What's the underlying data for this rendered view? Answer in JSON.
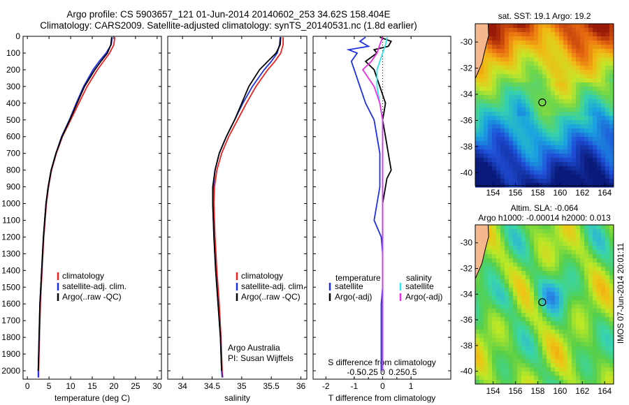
{
  "header": {
    "line1": "Argo profile: CS 5903657_121 01-Jun-2014 20140602_253 34.62S 158.404E",
    "line2": "Climatology: CARS2009. Satellite-adjusted climatology: synTS_20140531.nc (1.8d earlier)"
  },
  "colors": {
    "climatology": "#ee2020",
    "satellite": "#1f2fe6",
    "argo": "#000000",
    "argo_salinity": "#ee2ce6",
    "satellite_salinity": "#30e6ee",
    "land": "#f4b88c"
  },
  "chart_data": [
    {
      "id": "temperature",
      "type": "line",
      "xlabel": "temperature (deg C)",
      "xlim": [
        -1,
        31
      ],
      "ylim": [
        2050,
        0
      ],
      "xticks": [
        0,
        5,
        10,
        15,
        20,
        25,
        30
      ],
      "xtick_labels": [
        "0",
        "5",
        "10",
        "15",
        "20",
        "25",
        "30"
      ],
      "yticks": [
        0,
        100,
        200,
        300,
        400,
        500,
        600,
        700,
        800,
        900,
        1000,
        1100,
        1200,
        1300,
        1400,
        1500,
        1600,
        1700,
        1800,
        1900,
        2000
      ],
      "ytick_labels": [
        "0",
        "100",
        "200",
        "300",
        "400",
        "500",
        "600",
        "700",
        "800",
        "900",
        "1000",
        "1100",
        "1200",
        "1300",
        "1400",
        "1500",
        "1600",
        "1700",
        "1800",
        "1900",
        "2000"
      ],
      "legend": [
        "climatology",
        "satellite-adj. clim.",
        "Argo(..raw -QC)"
      ],
      "series": [
        {
          "name": "climatology",
          "color": "#ee2020",
          "depth": [
            5,
            50,
            100,
            150,
            200,
            300,
            400,
            500,
            600,
            700,
            800,
            900,
            1000,
            1200,
            1400,
            1600,
            1800,
            2000,
            2040
          ],
          "values": [
            20.2,
            20.0,
            19.0,
            17.6,
            16.2,
            13.8,
            11.9,
            10.0,
            8.1,
            6.7,
            5.6,
            4.9,
            4.4,
            3.8,
            3.4,
            3.0,
            2.8,
            2.6,
            2.6
          ]
        },
        {
          "name": "satellite-adj. clim.",
          "color": "#1f2fe6",
          "depth": [
            5,
            50,
            100,
            150,
            200,
            300,
            400,
            500,
            600,
            700,
            800,
            900,
            1000,
            1200,
            1400,
            1600,
            1800,
            2000,
            2040
          ],
          "values": [
            19.6,
            19.4,
            18.2,
            16.6,
            15.2,
            13.0,
            11.3,
            9.7,
            7.9,
            6.6,
            5.5,
            4.8,
            4.3,
            3.7,
            3.3,
            2.9,
            2.7,
            2.5,
            2.5
          ]
        },
        {
          "name": "Argo(..raw -QC)",
          "color": "#000000",
          "depth": [
            5,
            50,
            100,
            150,
            200,
            300,
            400,
            500,
            600,
            700,
            800,
            900,
            1000,
            1200,
            1400,
            1600,
            1800,
            2000
          ],
          "values": [
            19.5,
            19.3,
            18.5,
            17.0,
            15.6,
            13.2,
            11.5,
            9.8,
            8.0,
            6.6,
            5.5,
            4.8,
            4.3,
            3.7,
            3.3,
            2.9,
            2.7,
            2.5
          ]
        }
      ]
    },
    {
      "id": "salinity",
      "type": "line",
      "xlabel": "salinity",
      "xlim": [
        33.75,
        36.1
      ],
      "ylim": [
        2050,
        0
      ],
      "xticks": [
        34,
        34.5,
        35,
        35.5,
        36
      ],
      "xtick_labels": [
        "34",
        "34.5",
        "35",
        "35.5",
        "36"
      ],
      "legend": [
        "climatology",
        "satellite-adj. clim.",
        "Argo(..raw -QC)"
      ],
      "credit": [
        "Argo Australia",
        "PI: Susan Wijffels"
      ],
      "series": [
        {
          "name": "climatology",
          "color": "#ee2020",
          "depth": [
            5,
            50,
            100,
            150,
            200,
            300,
            400,
            500,
            600,
            700,
            800,
            900,
            1000,
            1200,
            1400,
            1600,
            1800,
            2000,
            2040
          ],
          "values": [
            35.7,
            35.7,
            35.66,
            35.56,
            35.44,
            35.24,
            35.08,
            34.93,
            34.78,
            34.66,
            34.58,
            34.54,
            34.53,
            34.55,
            34.58,
            34.62,
            34.65,
            34.67,
            34.68
          ]
        },
        {
          "name": "satellite-adj. clim.",
          "color": "#1f2fe6",
          "depth": [
            5,
            50,
            100,
            150,
            200,
            300,
            400,
            500,
            600,
            700,
            800,
            900,
            1000,
            1200,
            1400,
            1600,
            1800,
            2000,
            2040
          ],
          "values": [
            35.65,
            35.64,
            35.6,
            35.5,
            35.38,
            35.18,
            35.02,
            34.88,
            34.74,
            34.62,
            34.55,
            34.52,
            34.51,
            34.53,
            34.56,
            34.6,
            34.64,
            34.66,
            34.67
          ]
        },
        {
          "name": "Argo(..raw -QC)",
          "color": "#000000",
          "depth": [
            5,
            50,
            100,
            150,
            200,
            300,
            400,
            500,
            600,
            700,
            800,
            900,
            1000,
            1200,
            1400,
            1600,
            1800,
            2000
          ],
          "values": [
            35.66,
            35.65,
            35.58,
            35.44,
            35.3,
            35.12,
            35.0,
            34.88,
            34.74,
            34.62,
            34.55,
            34.51,
            34.51,
            34.53,
            34.56,
            34.6,
            34.64,
            34.66
          ]
        }
      ]
    },
    {
      "id": "difference",
      "type": "line",
      "xlabel": "T difference from climatology",
      "top_label": "S difference from climatology",
      "xlim": [
        -2.45,
        2.4
      ],
      "ylim": [
        2050,
        0
      ],
      "xticks": [
        -2,
        -1,
        0,
        1
      ],
      "xtick_labels": [
        "-2",
        "-1",
        "0",
        "1"
      ],
      "sticks": [
        -1,
        -0.5,
        0,
        0.5,
        1
      ],
      "stick_labels": [
        "-0.5",
        "-0.25",
        "0",
        "0.25",
        "0.5"
      ],
      "legend_temperature_title": "temperature",
      "legend_salinity_title": "salinity",
      "legend": [
        "satellite",
        "Argo(-adj)",
        "satellite",
        "Argo(-adj)"
      ],
      "series": [
        {
          "name": "satellite",
          "group": "temperature",
          "color": "#1f2fe6",
          "depth": [
            5,
            30,
            60,
            80,
            100,
            150,
            200,
            300,
            400,
            500,
            600,
            700,
            800,
            900,
            1000,
            1100,
            1200,
            1300,
            1400,
            1500,
            1600,
            1800,
            2000
          ],
          "values": [
            -0.6,
            -0.8,
            -0.5,
            -1.2,
            -0.9,
            -1.1,
            -1.0,
            -0.8,
            -0.6,
            -0.3,
            -0.2,
            -0.1,
            -0.1,
            -0.1,
            -0.2,
            -0.3,
            -0.05,
            0.0,
            0.0,
            0.0,
            -0.05,
            -0.05,
            -0.05
          ]
        },
        {
          "name": "Argo(-adj)",
          "group": "temperature",
          "color": "#000000",
          "depth": [
            5,
            30,
            60,
            80,
            100,
            150,
            200,
            300,
            400,
            500,
            600,
            700,
            800,
            850,
            900,
            1000,
            1100,
            1200,
            1300,
            1400,
            1500,
            1600,
            1800,
            2000
          ],
          "values": [
            -0.1,
            0.3,
            0.2,
            -0.3,
            -0.2,
            -0.6,
            -0.3,
            -0.1,
            0.1,
            0.0,
            0.1,
            0.2,
            0.3,
            0.15,
            0.1,
            0.0,
            0.0,
            0.0,
            0.0,
            0.0,
            0.0,
            0.0,
            0.0,
            0.0
          ]
        },
        {
          "name": "satellite",
          "group": "salinity",
          "color": "#30e6ee",
          "depth": [
            5,
            50,
            100,
            200,
            300,
            400,
            500,
            600,
            800,
            1000,
            1200,
            1400,
            1600,
            1800,
            2000
          ],
          "values": [
            0.08,
            0.05,
            0.0,
            -0.1,
            -0.1,
            -0.05,
            0.0,
            0.0,
            0.0,
            0.0,
            0.0,
            0.0,
            0.0,
            0.0,
            0.0
          ]
        },
        {
          "name": "Argo(-adj)",
          "group": "salinity",
          "color": "#ee2ce6",
          "depth": [
            5,
            50,
            100,
            150,
            200,
            300,
            400,
            500,
            600,
            800,
            1000,
            1200,
            1400,
            1600,
            1800,
            2000
          ],
          "values": [
            0.0,
            -0.05,
            -0.1,
            -0.2,
            -0.35,
            -0.15,
            -0.05,
            0.0,
            0.0,
            0.0,
            0.0,
            0.0,
            0.0,
            0.0,
            0.0,
            0.0
          ]
        }
      ]
    },
    {
      "id": "sst_map",
      "type": "heatmap",
      "title": "sat. SST: 19.1 Argo: 19.2",
      "xlim": [
        152.4,
        164.8
      ],
      "ylim": [
        -41,
        -28.6
      ],
      "xticks": [
        154,
        156,
        158,
        160,
        162,
        164
      ],
      "xtick_labels": [
        "154",
        "156",
        "158",
        "160",
        "162",
        "164"
      ],
      "yticks": [
        -30,
        -32,
        -34,
        -36,
        -38,
        -40
      ],
      "ytick_labels": [
        "-30",
        "-32",
        "-34",
        "-36",
        "-38",
        "-40"
      ],
      "float_position": [
        158.404,
        -34.62
      ]
    },
    {
      "id": "sla_map",
      "type": "heatmap",
      "title": "Altim. SLA: -0.064",
      "subtitle": "Argo h1000: -0.00014 h2000: 0.013",
      "xlim": [
        152.4,
        164.8
      ],
      "ylim": [
        -41,
        -28.6
      ],
      "xticks": [
        154,
        156,
        158,
        160,
        162,
        164
      ],
      "xtick_labels": [
        "154",
        "156",
        "158",
        "160",
        "162",
        "164"
      ],
      "yticks": [
        -30,
        -32,
        -34,
        -36,
        -38,
        -40
      ],
      "ytick_labels": [
        "-30",
        "-32",
        "-34",
        "-36",
        "-38",
        "-40"
      ],
      "float_position": [
        158.404,
        -34.62
      ]
    }
  ],
  "watermark": "IMOS 07-Jun-2014 20:01:11"
}
